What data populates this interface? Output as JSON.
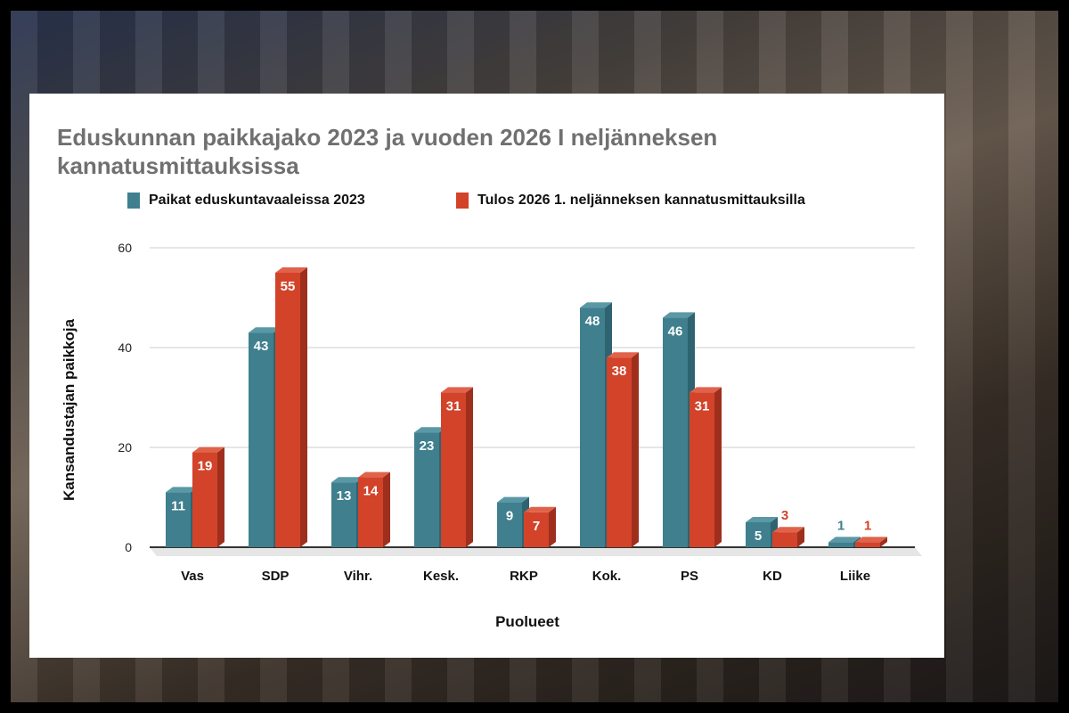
{
  "chart_data": {
    "type": "bar",
    "title": "Eduskunnan paikkajako 2023 ja vuoden 2026 I neljänneksen kannatusmittauksissa",
    "xlabel": "Puolueet",
    "ylabel": "Kansandustajan paikkoja",
    "ylim": [
      0,
      60
    ],
    "yticks": [
      "0",
      "20",
      "40",
      "60"
    ],
    "categories": [
      "Vas",
      "SDP",
      "Vihr.",
      "Kesk.",
      "RKP",
      "Kok.",
      "PS",
      "KD",
      "Liike"
    ],
    "series": [
      {
        "name": "Paikat eduskuntavaaleissa 2023",
        "color": "#3f7f8e",
        "values": [
          11,
          43,
          13,
          23,
          9,
          48,
          46,
          5,
          1
        ]
      },
      {
        "name": "Tulos 2026 1. neljänneksen kannatusmittauksilla",
        "color": "#d2432a",
        "values": [
          19,
          55,
          14,
          31,
          7,
          38,
          31,
          3,
          1
        ]
      }
    ],
    "grid": true,
    "legend": "top"
  }
}
